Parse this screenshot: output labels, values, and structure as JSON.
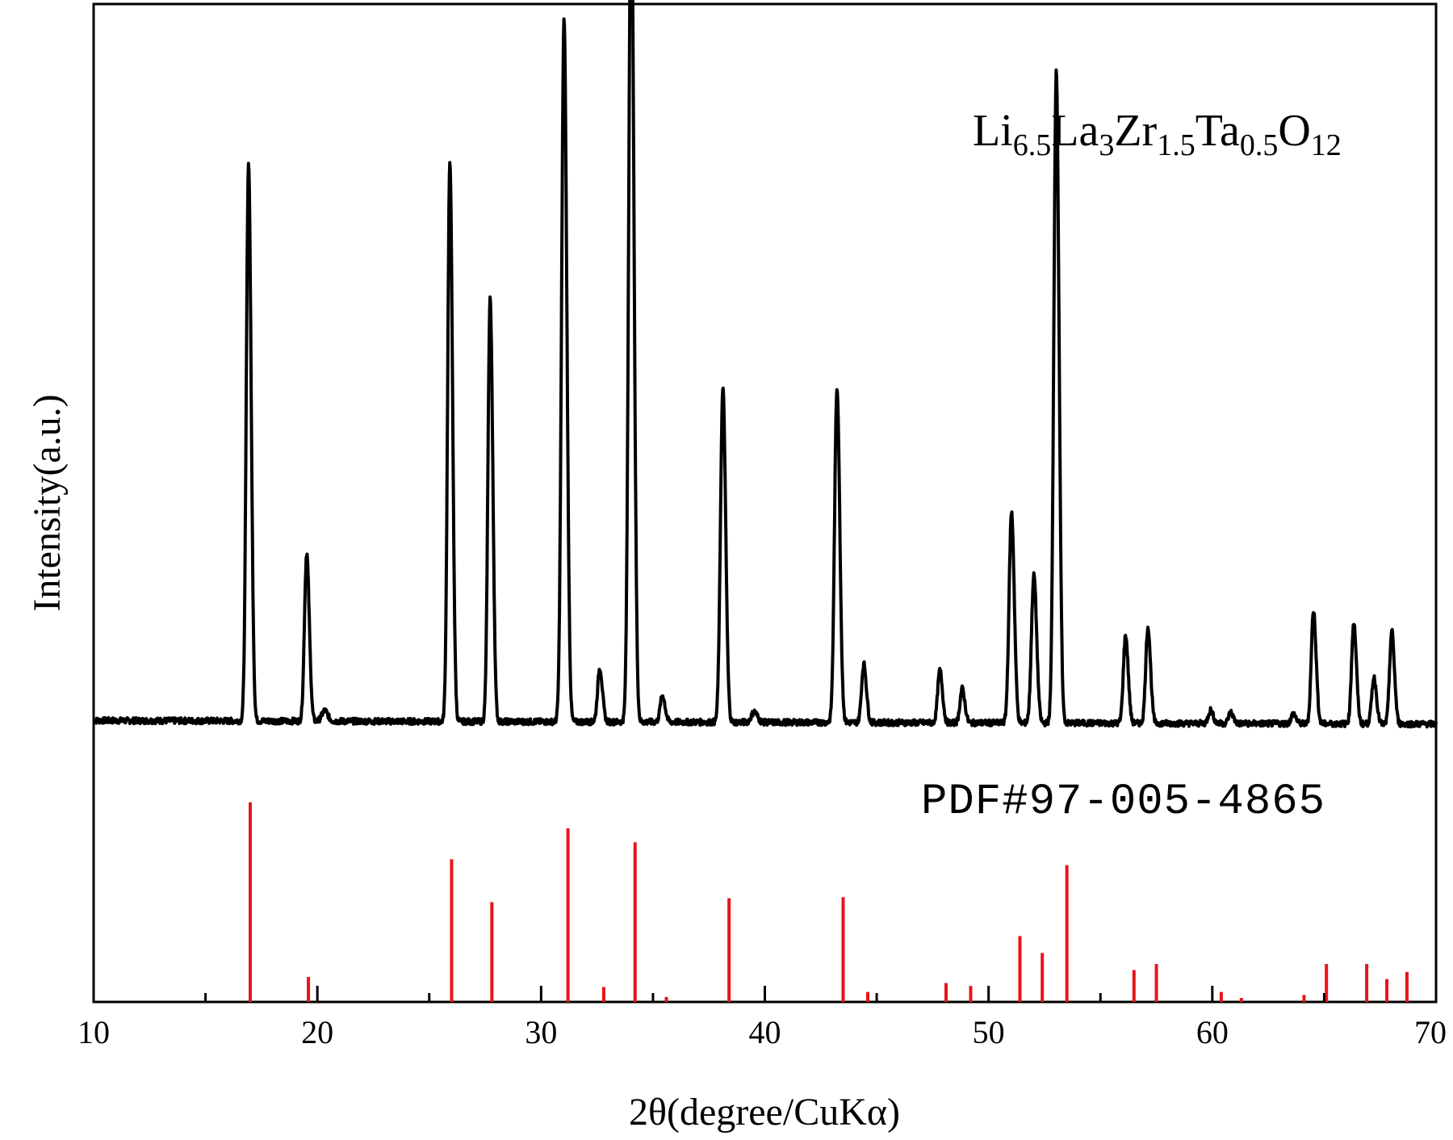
{
  "chart_data": {
    "type": "line",
    "xlabel": "2θ(degree/CuKα)",
    "ylabel": "Intensity(a.u.)",
    "xlim": [
      10,
      70
    ],
    "ylim": [
      0,
      1
    ],
    "x_ticks": [
      10,
      20,
      30,
      40,
      50,
      60,
      70
    ],
    "x_tick_labels": [
      "10",
      "20",
      "30",
      "40",
      "50",
      "60",
      "70"
    ],
    "x_minor_ticks": [
      15,
      25,
      35,
      45,
      55,
      65
    ],
    "y_ticks_shown": false,
    "grid": false,
    "colors": {
      "pattern": "#000000",
      "reference": "#e8141c"
    },
    "annotations": {
      "sample": {
        "main": [
          "Li",
          "La",
          "Zr",
          "Ta",
          "O"
        ],
        "subs": [
          "6.5",
          "3",
          "1.5",
          "0.5",
          "12"
        ]
      },
      "reference": "PDF#97-005-4865"
    },
    "series": [
      {
        "kind": "measured-pattern",
        "baseline": 0.282,
        "peaks": [
          {
            "x": 16.9,
            "y": 0.74,
            "w": 0.09
          },
          {
            "x": 19.5,
            "y": 0.42,
            "w": 0.09
          },
          {
            "x": 20.3,
            "y": 0.29,
            "w": 0.12
          },
          {
            "x": 25.9,
            "y": 0.742,
            "w": 0.09
          },
          {
            "x": 27.7,
            "y": 0.63,
            "w": 0.09
          },
          {
            "x": 31.0,
            "y": 0.842,
            "w": 0.1
          },
          {
            "x": 32.6,
            "y": 0.326,
            "w": 0.09
          },
          {
            "x": 34.0,
            "y": 0.961,
            "w": 0.1
          },
          {
            "x": 35.4,
            "y": 0.304,
            "w": 0.09
          },
          {
            "x": 38.1,
            "y": 0.548,
            "w": 0.1
          },
          {
            "x": 39.5,
            "y": 0.29,
            "w": 0.12
          },
          {
            "x": 43.2,
            "y": 0.549,
            "w": 0.1
          },
          {
            "x": 44.4,
            "y": 0.33,
            "w": 0.09
          },
          {
            "x": 47.8,
            "y": 0.325,
            "w": 0.09
          },
          {
            "x": 48.8,
            "y": 0.31,
            "w": 0.09
          },
          {
            "x": 51.0,
            "y": 0.45,
            "w": 0.1
          },
          {
            "x": 52.0,
            "y": 0.4,
            "w": 0.1
          },
          {
            "x": 53.0,
            "y": 0.802,
            "w": 0.1
          },
          {
            "x": 56.1,
            "y": 0.354,
            "w": 0.09
          },
          {
            "x": 57.1,
            "y": 0.361,
            "w": 0.09
          },
          {
            "x": 59.9,
            "y": 0.293,
            "w": 0.09
          },
          {
            "x": 60.8,
            "y": 0.291,
            "w": 0.09
          },
          {
            "x": 63.6,
            "y": 0.29,
            "w": 0.09
          },
          {
            "x": 64.5,
            "y": 0.375,
            "w": 0.09
          },
          {
            "x": 66.3,
            "y": 0.365,
            "w": 0.09
          },
          {
            "x": 67.2,
            "y": 0.32,
            "w": 0.09
          },
          {
            "x": 68.0,
            "y": 0.358,
            "w": 0.09
          }
        ]
      },
      {
        "kind": "reference-sticks",
        "values": [
          {
            "x": 17.0,
            "y": 0.2
          },
          {
            "x": 19.6,
            "y": 0.025
          },
          {
            "x": 26.0,
            "y": 0.143
          },
          {
            "x": 27.8,
            "y": 0.1
          },
          {
            "x": 31.2,
            "y": 0.174
          },
          {
            "x": 32.8,
            "y": 0.015
          },
          {
            "x": 34.2,
            "y": 0.16
          },
          {
            "x": 35.6,
            "y": 0.005
          },
          {
            "x": 38.4,
            "y": 0.104
          },
          {
            "x": 43.5,
            "y": 0.105
          },
          {
            "x": 44.6,
            "y": 0.01
          },
          {
            "x": 48.1,
            "y": 0.019
          },
          {
            "x": 49.2,
            "y": 0.016
          },
          {
            "x": 51.4,
            "y": 0.066
          },
          {
            "x": 52.4,
            "y": 0.049
          },
          {
            "x": 53.5,
            "y": 0.137
          },
          {
            "x": 56.5,
            "y": 0.032
          },
          {
            "x": 57.5,
            "y": 0.038
          },
          {
            "x": 60.4,
            "y": 0.01
          },
          {
            "x": 61.3,
            "y": 0.004
          },
          {
            "x": 64.1,
            "y": 0.007
          },
          {
            "x": 65.1,
            "y": 0.038
          },
          {
            "x": 66.9,
            "y": 0.038
          },
          {
            "x": 67.8,
            "y": 0.023
          },
          {
            "x": 68.7,
            "y": 0.03
          }
        ]
      }
    ]
  }
}
